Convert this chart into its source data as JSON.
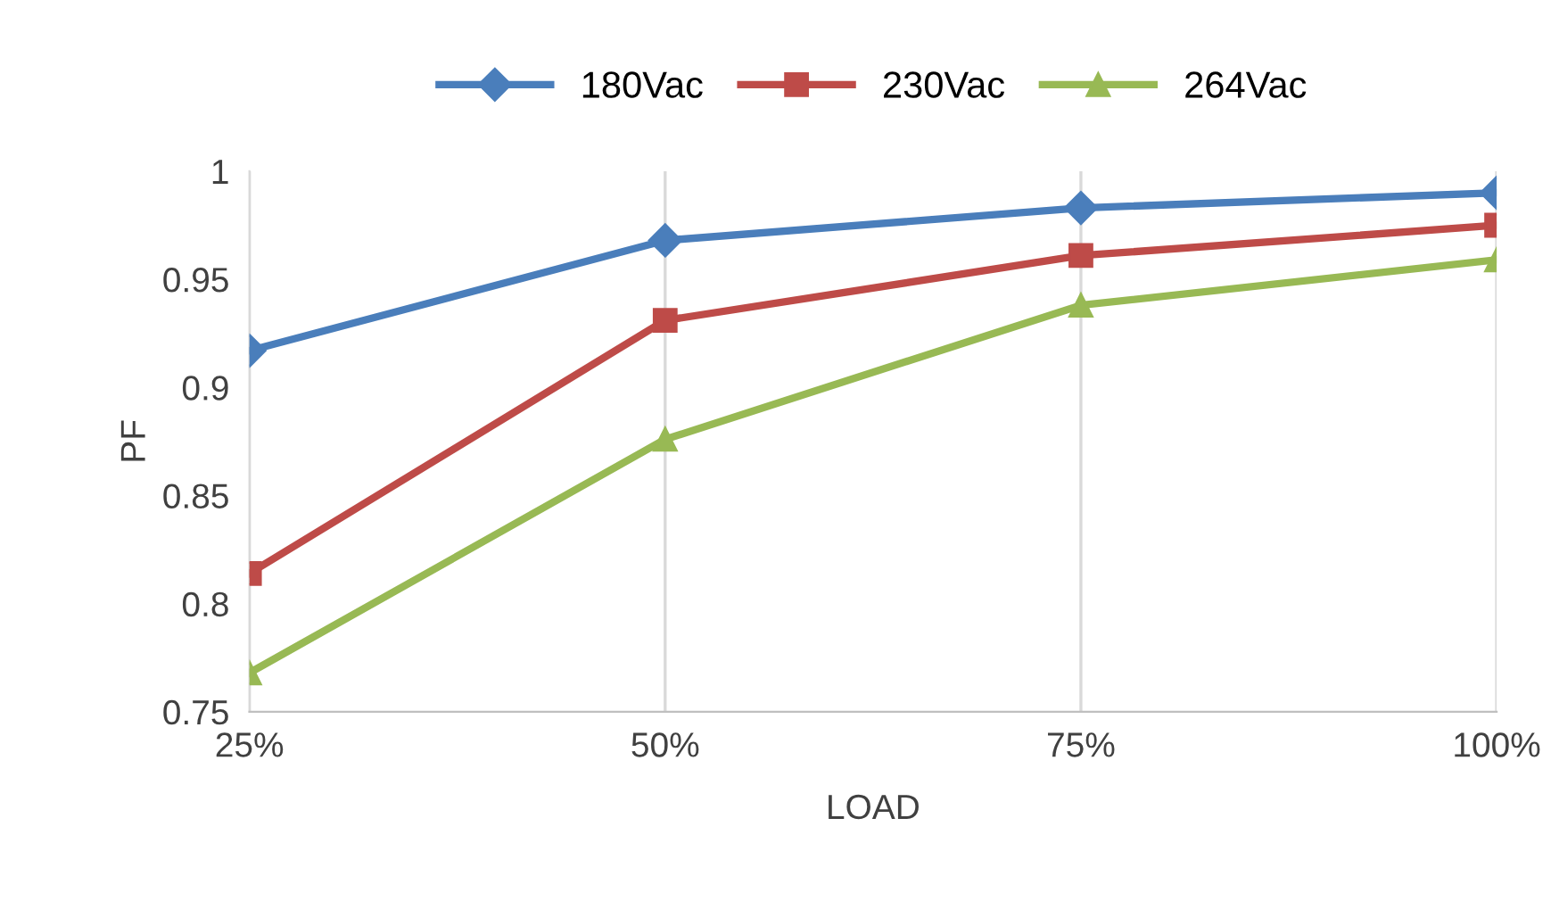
{
  "chart_data": {
    "type": "line",
    "xlabel": "LOAD",
    "ylabel": "PF",
    "categories": [
      "25%",
      "50%",
      "75%",
      "100%"
    ],
    "series": [
      {
        "name": "180Vac",
        "color": "#4a7ebb",
        "marker": "diamond",
        "values": [
          0.917,
          0.968,
          0.983,
          0.99
        ]
      },
      {
        "name": "230Vac",
        "color": "#be4b48",
        "marker": "square",
        "values": [
          0.814,
          0.931,
          0.961,
          0.975
        ]
      },
      {
        "name": "264Vac",
        "color": "#98b954",
        "marker": "triangle",
        "values": [
          0.768,
          0.876,
          0.938,
          0.959
        ]
      }
    ],
    "ylim": [
      0.75,
      1
    ],
    "yticks": [
      0.75,
      0.8,
      0.85,
      0.9,
      0.95,
      1
    ],
    "grid": "x",
    "legend": "top",
    "line_style": "solid"
  }
}
